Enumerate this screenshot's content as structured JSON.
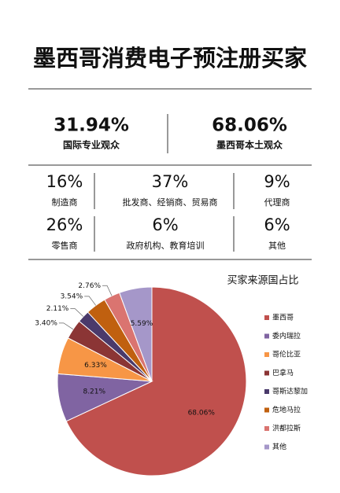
{
  "title": "墨西哥消费电子预注册买家",
  "summary": [
    {
      "value": "31.94%",
      "label": "国际专业观众"
    },
    {
      "value": "68.06%",
      "label": "墨西哥本土观众"
    }
  ],
  "breakdown": [
    {
      "value": "16%",
      "label": "制造商"
    },
    {
      "value": "37%",
      "label": "批发商、经销商、贸易商"
    },
    {
      "value": "9%",
      "label": "代理商"
    },
    {
      "value": "26%",
      "label": "零售商"
    },
    {
      "value": "6%",
      "label": "政府机构、教育培训"
    },
    {
      "value": "6%",
      "label": "其他"
    }
  ],
  "chart_data": {
    "type": "pie",
    "title": "买家来源国占比",
    "categories": [
      "墨西哥",
      "委内瑞拉",
      "哥伦比亚",
      "巴拿马",
      "哥斯达黎加",
      "危地马拉",
      "洪都拉斯",
      "其他"
    ],
    "values": [
      68.06,
      8.21,
      6.33,
      3.4,
      2.11,
      3.54,
      2.76,
      5.59
    ],
    "value_labels": [
      "68.06%",
      "8.21%",
      "6.33%",
      "3.40%",
      "2.11%",
      "3.54%",
      "2.76%",
      "5.59%"
    ],
    "colors": [
      "#c0504d",
      "#8064a2",
      "#f79646",
      "#8b3535",
      "#4a3a6b",
      "#c0600f",
      "#da7470",
      "#a597c9"
    ]
  }
}
